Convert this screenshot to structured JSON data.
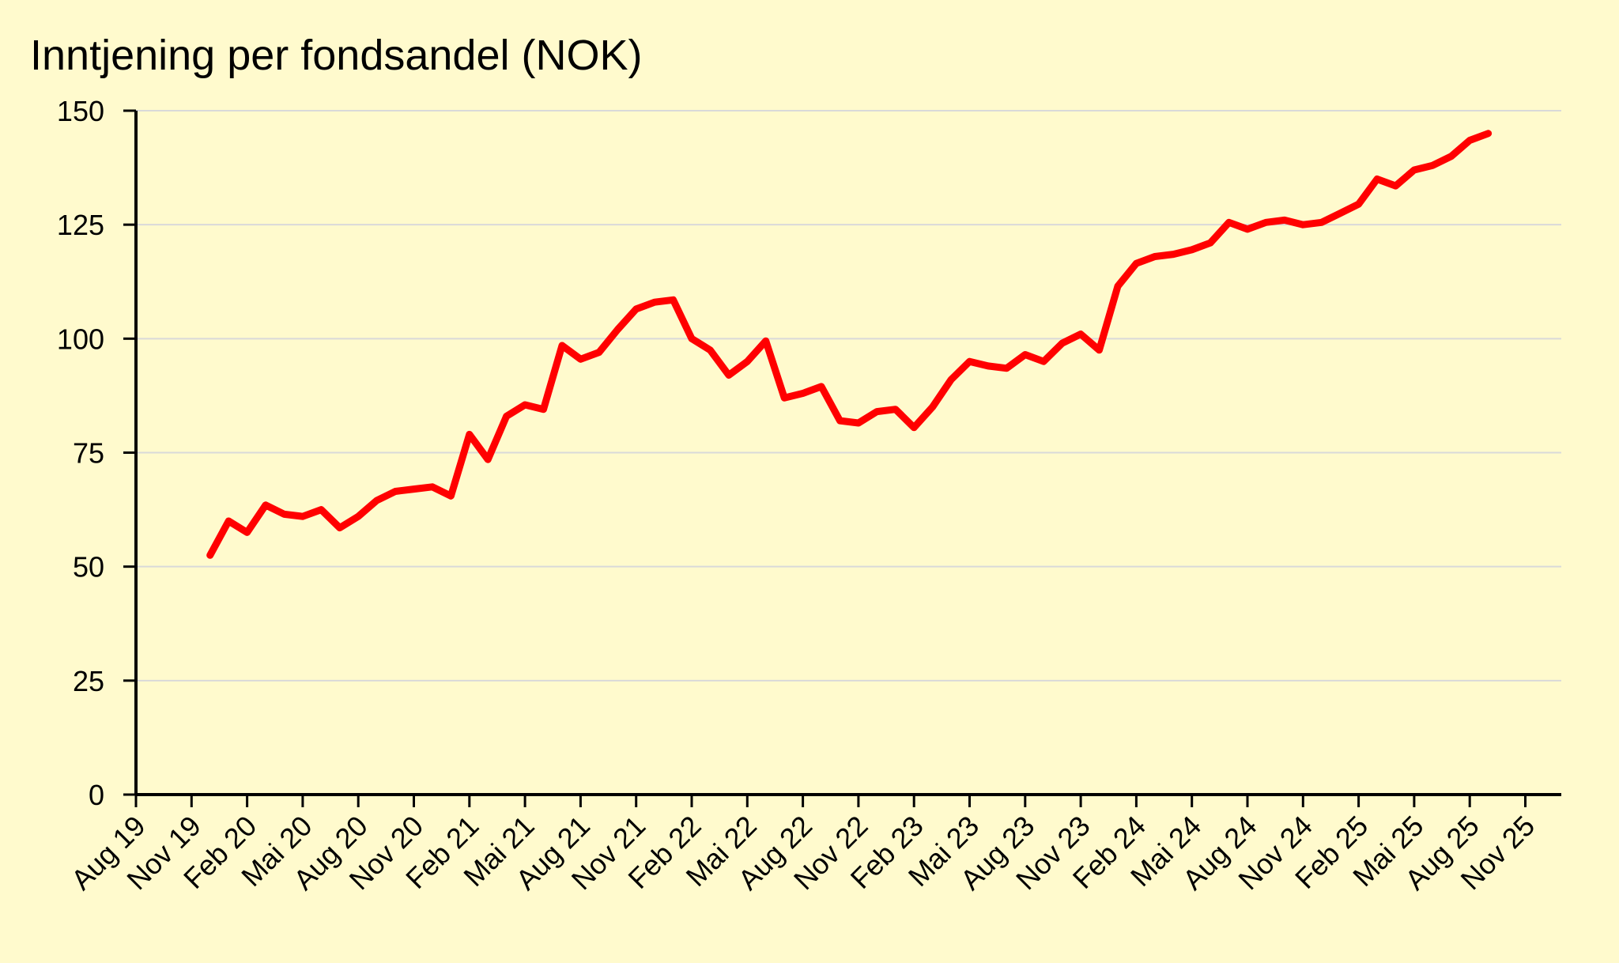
{
  "chart_data": {
    "type": "line",
    "title": "Inntjening per fondsandel (NOK)",
    "xlabel": "",
    "ylabel": "",
    "ylim": [
      0,
      150
    ],
    "yticks": [
      0,
      25,
      50,
      75,
      100,
      125,
      150
    ],
    "grid": true,
    "legend": "none",
    "x_ticks": [
      "Aug 19",
      "Nov 19",
      "Feb 20",
      "Mai 20",
      "Aug 20",
      "Nov 20",
      "Feb 21",
      "Mai 21",
      "Aug 21",
      "Nov 21",
      "Feb 22",
      "Mai 22",
      "Aug 22",
      "Nov 22",
      "Feb 23",
      "Mai 23",
      "Aug 23",
      "Nov 23",
      "Feb 24",
      "Mai 24",
      "Aug 24",
      "Nov 24",
      "Feb 25",
      "Mai 25",
      "Aug 25",
      "Nov 25"
    ],
    "x_start": "Aug 19",
    "series": [
      {
        "color": "#FF0000",
        "x": [
          "Des 19",
          "Jan 20",
          "Feb 20",
          "Mar 20",
          "Apr 20",
          "Mai 20",
          "Jun 20",
          "Jul 20",
          "Aug 20",
          "Sep 20",
          "Okt 20",
          "Nov 20",
          "Des 20",
          "Jan 21",
          "Feb 21",
          "Mar 21",
          "Apr 21",
          "Mai 21",
          "Jun 21",
          "Jul 21",
          "Aug 21",
          "Sep 21",
          "Okt 21",
          "Nov 21",
          "Des 21",
          "Jan 22",
          "Feb 22",
          "Mar 22",
          "Apr 22",
          "Mai 22",
          "Jun 22",
          "Jul 22",
          "Aug 22",
          "Sep 22",
          "Okt 22",
          "Nov 22",
          "Des 22",
          "Jan 23",
          "Feb 23",
          "Mar 23",
          "Apr 23",
          "Mai 23",
          "Jun 23",
          "Jul 23",
          "Aug 23",
          "Sep 23",
          "Okt 23",
          "Nov 23",
          "Des 23",
          "Jan 24",
          "Feb 24",
          "Mar 24",
          "Apr 24",
          "Mai 24",
          "Jun 24",
          "Jul 24",
          "Aug 24",
          "Sep 24",
          "Okt 24",
          "Nov 24",
          "Des 24",
          "Jan 25",
          "Feb 25",
          "Mar 25",
          "Apr 25",
          "Mai 25",
          "Jun 25",
          "Jul 25",
          "Aug 25",
          "Sep 25"
        ],
        "values": [
          52.5,
          60.0,
          57.5,
          63.5,
          61.5,
          61.0,
          62.5,
          58.5,
          61.0,
          64.5,
          66.5,
          67.0,
          67.5,
          65.5,
          79.0,
          73.5,
          83.0,
          85.5,
          84.5,
          98.5,
          95.5,
          97.0,
          102.0,
          106.5,
          108.0,
          108.5,
          100.0,
          97.5,
          92.0,
          95.0,
          99.5,
          87.0,
          88.0,
          89.5,
          82.0,
          81.5,
          84.0,
          84.5,
          80.5,
          85.0,
          91.0,
          95.0,
          94.0,
          93.5,
          96.5,
          95.0,
          99.0,
          101.0,
          97.5,
          111.5,
          116.5,
          118.0,
          118.5,
          119.5,
          121.0,
          125.5,
          124.0,
          125.5,
          126.0,
          125.0,
          125.5,
          127.5,
          129.5,
          135.0,
          133.5,
          137.0,
          138.0,
          140.0,
          143.5,
          145.0
        ]
      }
    ]
  }
}
